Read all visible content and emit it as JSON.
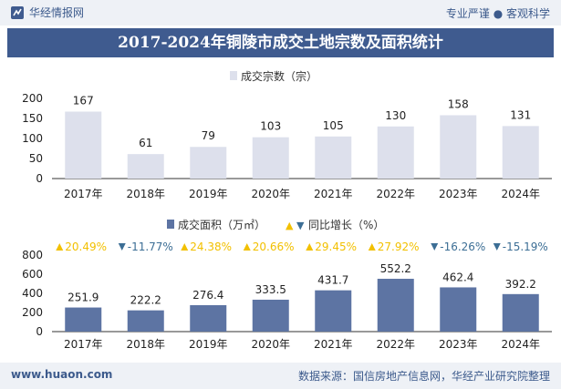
{
  "header": {
    "brand": "华经情报网",
    "tagline": "专业严谨 ● 客观科学"
  },
  "title": "2017-2024年铜陵市成交土地宗数及面积统计",
  "footer": {
    "site": "www.huaon.com",
    "source": "数据来源：国信房地产信息网，华经产业研究院整理"
  },
  "colors": {
    "bar_top": "#dde0ec",
    "bar_bottom": "#5d74a3",
    "up": "#f2c000",
    "down": "#3c6e95",
    "title_bg": "#3f5b8f"
  },
  "chart_data": [
    {
      "type": "bar",
      "categories": [
        "2017年",
        "2018年",
        "2019年",
        "2020年",
        "2021年",
        "2022年",
        "2023年",
        "2024年"
      ],
      "series": [
        {
          "name": "成交宗数（宗）",
          "values": [
            167,
            61,
            79,
            103,
            105,
            130,
            158,
            131
          ]
        }
      ],
      "yticks": [
        "0",
        "50",
        "100",
        "150",
        "200"
      ],
      "ylim": [
        0,
        200
      ]
    },
    {
      "type": "bar",
      "categories": [
        "2017年",
        "2018年",
        "2019年",
        "2020年",
        "2021年",
        "2022年",
        "2023年",
        "2024年"
      ],
      "series": [
        {
          "name": "成交面积（万㎡）",
          "values": [
            251.9,
            222.2,
            276.4,
            333.5,
            431.7,
            552.2,
            462.4,
            392.2
          ]
        },
        {
          "name": "同比增长（%）",
          "values": [
            20.49,
            -11.77,
            24.38,
            20.66,
            29.45,
            27.92,
            -16.26,
            -15.19
          ]
        }
      ],
      "growth_labels": [
        "20.49%",
        "-11.77%",
        "24.38%",
        "20.66%",
        "29.45%",
        "27.92%",
        "-16.26%",
        "-15.19%"
      ],
      "legend_growth_symbols": [
        "▲",
        "▼"
      ],
      "yticks": [
        "0",
        "200",
        "400",
        "600",
        "800"
      ],
      "ylim": [
        0,
        800
      ]
    }
  ]
}
